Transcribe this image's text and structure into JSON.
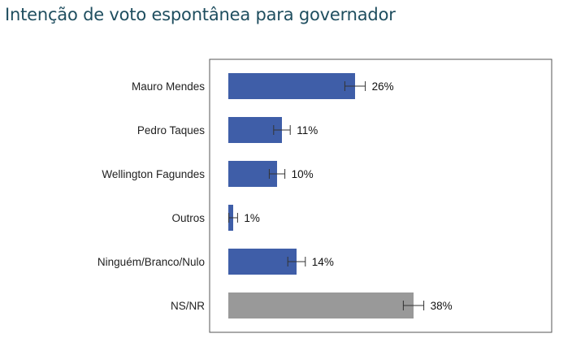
{
  "page": {
    "title": "Intenção de voto espontânea para governador"
  },
  "chart_data": {
    "type": "bar",
    "orientation": "horizontal",
    "title": "Intenção de voto espontânea para governador",
    "xlabel": "",
    "ylabel": "",
    "xlim": [
      0,
      44
    ],
    "grid": false,
    "legend": "none",
    "categories": [
      "Mauro Mendes",
      "Pedro Taques",
      "Wellington Fagundes",
      "Outros",
      "Ninguém/Branco/Nulo",
      "NS/NR"
    ],
    "values": [
      26,
      11,
      10,
      1,
      14,
      38
    ],
    "value_labels": [
      "26%",
      "11%",
      "10%",
      "1%",
      "14%",
      "38%"
    ],
    "error_margin": [
      2.1,
      1.7,
      1.6,
      0.9,
      1.8,
      2.1
    ],
    "bar_colors": [
      "#3f5ea8",
      "#3f5ea8",
      "#3f5ea8",
      "#3f5ea8",
      "#3f5ea8",
      "#999999"
    ]
  }
}
